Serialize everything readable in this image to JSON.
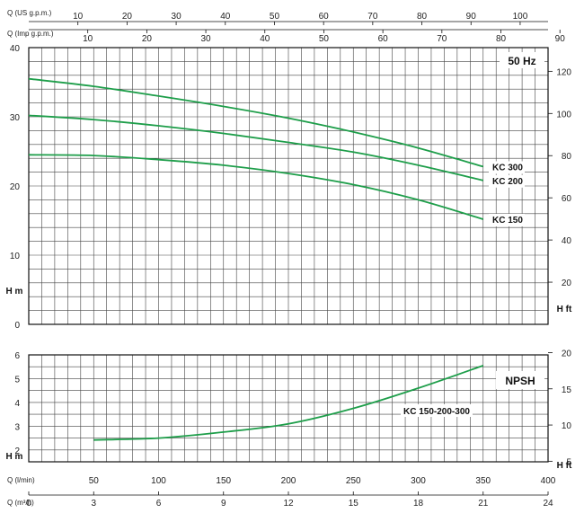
{
  "chart_data": [
    {
      "type": "line",
      "badge": "50 Hz",
      "xaxis": {
        "ticks": [
          0,
          50,
          100,
          150,
          200,
          250,
          300,
          350,
          400
        ],
        "range": [
          0,
          400
        ]
      },
      "yaxis_left": {
        "label": "H m",
        "ticks": [
          0,
          10,
          20,
          30,
          40
        ],
        "range": [
          0,
          40
        ]
      },
      "yaxis_right": {
        "label": "H ft",
        "ticks": [
          20,
          40,
          60,
          80,
          100,
          120
        ]
      },
      "top_axis_us": {
        "label": "Q (US g.p.m.)",
        "ticks": [
          10,
          20,
          30,
          40,
          50,
          60,
          70,
          80,
          90,
          100
        ]
      },
      "top_axis_imp": {
        "label": "Q (Imp g.p.m.)",
        "ticks": [
          10,
          20,
          30,
          40,
          50,
          60,
          70,
          80,
          90
        ]
      },
      "series": [
        {
          "name": "KC 300",
          "x": [
            0,
            50,
            100,
            150,
            200,
            250,
            300,
            350
          ],
          "y": [
            35.5,
            34.4,
            33.0,
            31.5,
            29.8,
            27.8,
            25.5,
            22.8
          ]
        },
        {
          "name": "KC 200",
          "x": [
            0,
            50,
            100,
            150,
            200,
            250,
            300,
            350
          ],
          "y": [
            30.2,
            29.6,
            28.7,
            27.6,
            26.3,
            24.9,
            23.0,
            20.8
          ]
        },
        {
          "name": "KC 150",
          "x": [
            0,
            50,
            100,
            150,
            200,
            250,
            300,
            350
          ],
          "y": [
            24.5,
            24.4,
            23.8,
            23.0,
            21.8,
            20.2,
            18.0,
            15.2
          ]
        }
      ],
      "line_color": "#1e9e4a",
      "grid": true
    },
    {
      "type": "line",
      "badge": "NPSH",
      "yaxis_left": {
        "label": "H m",
        "ticks": [
          2,
          3,
          4,
          5,
          6
        ],
        "range": [
          1.5,
          6
        ]
      },
      "yaxis_right": {
        "label": "H ft",
        "ticks": [
          5,
          10,
          15,
          20
        ]
      },
      "bottom_axis_lmin": {
        "label": "Q (l/min)",
        "ticks": [
          50,
          100,
          150,
          200,
          250,
          300,
          350,
          400
        ]
      },
      "bottom_axis_m3h": {
        "label": "Q (m³/h)",
        "ticks": [
          0,
          3,
          6,
          9,
          12,
          15,
          18,
          21,
          24
        ]
      },
      "series": [
        {
          "name": "KC 150-200-300",
          "x": [
            50,
            100,
            150,
            200,
            250,
            300,
            350
          ],
          "y": [
            2.42,
            2.5,
            2.75,
            3.1,
            3.75,
            4.6,
            5.55
          ]
        }
      ],
      "line_color": "#1e9e4a",
      "grid": true
    }
  ]
}
